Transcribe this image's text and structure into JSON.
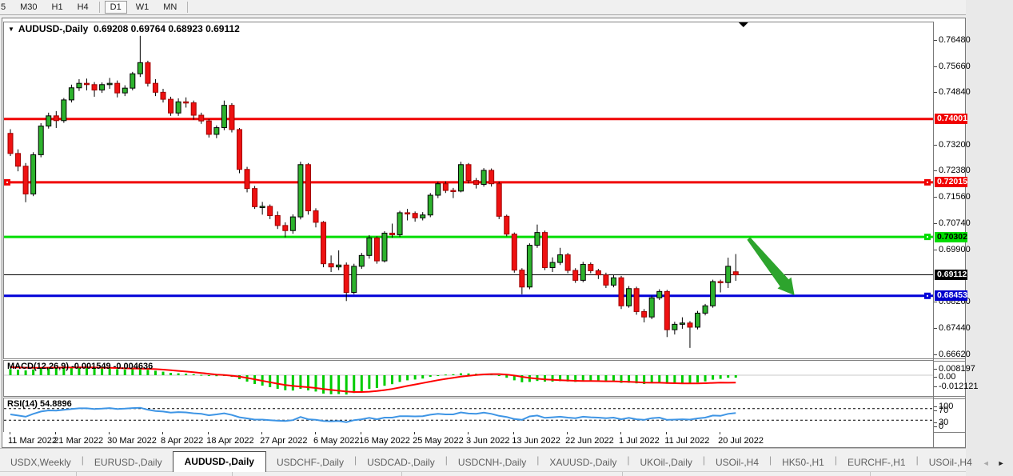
{
  "toolbar": {
    "timeframes": [
      "5",
      "M30",
      "H1",
      "H4",
      "D1",
      "W1",
      "MN"
    ],
    "active_timeframe": "D1"
  },
  "chart": {
    "symbol_period": "AUDUSD-,Daily",
    "ohlc_text": "0.69208 0.69764 0.68923 0.69112"
  },
  "colors": {
    "bull": "#2db22d",
    "bear": "#ee1111",
    "wick": "#000000",
    "macd_hist": "#00cc00",
    "macd_signal": "#ff0000",
    "rsi_line": "#3e95e5",
    "arrow_annotation": "#2da42d",
    "line_red": "#f00000",
    "line_green": "#00dd00",
    "line_black": "#000000",
    "line_blue": "#0000d8"
  },
  "chart_data": {
    "type": "candlestick",
    "title": "AUDUSD-,Daily",
    "last_ohlc": {
      "open": "0.69208",
      "high": "0.69764",
      "low": "0.68923",
      "close": "0.69112"
    },
    "price_axis_ticks": [
      "0.76480",
      "0.75660",
      "0.74840",
      "0.73200",
      "0.72380",
      "0.71560",
      "0.70740",
      "0.69900",
      "0.68260",
      "0.67440",
      "0.66620"
    ],
    "x_ticks": [
      {
        "label": "11 Mar 2022",
        "bar": 0
      },
      {
        "label": "21 Mar 2022",
        "bar": 6
      },
      {
        "label": "30 Mar 2022",
        "bar": 13
      },
      {
        "label": "8 Apr 2022",
        "bar": 20
      },
      {
        "label": "18 Apr 2022",
        "bar": 26
      },
      {
        "label": "27 Apr 2022",
        "bar": 33
      },
      {
        "label": "6 May 2022",
        "bar": 40
      },
      {
        "label": "16 May 2022",
        "bar": 46
      },
      {
        "label": "25 May 2022",
        "bar": 53
      },
      {
        "label": "3 Jun 2022",
        "bar": 60
      },
      {
        "label": "13 Jun 2022",
        "bar": 66
      },
      {
        "label": "22 Jun 2022",
        "bar": 73
      },
      {
        "label": "1 Jul 2022",
        "bar": 80
      },
      {
        "label": "11 Jul 2022",
        "bar": 86
      },
      {
        "label": "20 Jul 2022",
        "bar": 93
      }
    ],
    "hlines": [
      {
        "price": 0.74001,
        "label": "0.74001",
        "color": "#f00000",
        "width": 3,
        "badge_bg": "#f00000",
        "badge_fg": "#ffffff",
        "handles": []
      },
      {
        "price": 0.72015,
        "label": "0.72015",
        "color": "#f00000",
        "width": 3,
        "badge_bg": "#f00000",
        "badge_fg": "#ffffff",
        "handles": [
          "left",
          "right"
        ]
      },
      {
        "price": 0.70302,
        "label": "0.70302",
        "color": "#00dd00",
        "width": 3,
        "badge_bg": "#00dd00",
        "badge_fg": "#000000",
        "handles": [
          "right"
        ]
      },
      {
        "price": 0.69112,
        "label": "0.69112",
        "color": "#000000",
        "width": 1,
        "badge_bg": "#000000",
        "badge_fg": "#ffffff",
        "handles": []
      },
      {
        "price": 0.68453,
        "label": "0.68453",
        "color": "#0000d8",
        "width": 3,
        "badge_bg": "#0000cc",
        "badge_fg": "#ffffff",
        "handles": [
          "right"
        ]
      }
    ],
    "candles": [
      [
        0.7355,
        0.7368,
        0.7284,
        0.7292
      ],
      [
        0.7292,
        0.7305,
        0.7236,
        0.7252
      ],
      [
        0.7252,
        0.7262,
        0.7139,
        0.7165
      ],
      [
        0.7165,
        0.7296,
        0.7158,
        0.7288
      ],
      [
        0.7288,
        0.7387,
        0.728,
        0.7378
      ],
      [
        0.7378,
        0.742,
        0.737,
        0.741
      ],
      [
        0.741,
        0.7425,
        0.7372,
        0.7395
      ],
      [
        0.7395,
        0.7466,
        0.7388,
        0.746
      ],
      [
        0.746,
        0.7508,
        0.7452,
        0.7498
      ],
      [
        0.7498,
        0.7525,
        0.7488,
        0.7512
      ],
      [
        0.7512,
        0.7527,
        0.749,
        0.7508
      ],
      [
        0.7508,
        0.7516,
        0.747,
        0.7491
      ],
      [
        0.7491,
        0.7515,
        0.7482,
        0.7508
      ],
      [
        0.7508,
        0.7529,
        0.7495,
        0.7512
      ],
      [
        0.7512,
        0.7521,
        0.7468,
        0.7482
      ],
      [
        0.7482,
        0.7506,
        0.7472,
        0.7497
      ],
      [
        0.7497,
        0.7548,
        0.749,
        0.7542
      ],
      [
        0.7542,
        0.7661,
        0.7532,
        0.7577
      ],
      [
        0.7577,
        0.7583,
        0.7502,
        0.7512
      ],
      [
        0.7512,
        0.7525,
        0.7472,
        0.7484
      ],
      [
        0.7484,
        0.7495,
        0.7452,
        0.7462
      ],
      [
        0.7462,
        0.747,
        0.741,
        0.7419
      ],
      [
        0.7419,
        0.7465,
        0.741,
        0.7454
      ],
      [
        0.7454,
        0.7468,
        0.7436,
        0.7451
      ],
      [
        0.7451,
        0.7458,
        0.7398,
        0.7412
      ],
      [
        0.7412,
        0.742,
        0.7385,
        0.7394
      ],
      [
        0.7394,
        0.74,
        0.7342,
        0.7352
      ],
      [
        0.7352,
        0.738,
        0.734,
        0.7373
      ],
      [
        0.7373,
        0.7458,
        0.7365,
        0.7443
      ],
      [
        0.7443,
        0.745,
        0.7358,
        0.7367
      ],
      [
        0.7367,
        0.7372,
        0.723,
        0.7242
      ],
      [
        0.7242,
        0.725,
        0.717,
        0.7182
      ],
      [
        0.7182,
        0.719,
        0.7118,
        0.7125
      ],
      [
        0.7125,
        0.714,
        0.71,
        0.7126
      ],
      [
        0.7126,
        0.7132,
        0.7086,
        0.7097
      ],
      [
        0.7097,
        0.711,
        0.7055,
        0.7066
      ],
      [
        0.7066,
        0.7076,
        0.7029,
        0.705
      ],
      [
        0.705,
        0.7101,
        0.704,
        0.7093
      ],
      [
        0.7093,
        0.7266,
        0.7085,
        0.7257
      ],
      [
        0.7257,
        0.7262,
        0.71,
        0.7112
      ],
      [
        0.7112,
        0.712,
        0.706,
        0.7076
      ],
      [
        0.7076,
        0.708,
        0.6935,
        0.6946
      ],
      [
        0.6946,
        0.6972,
        0.692,
        0.6936
      ],
      [
        0.6936,
        0.6988,
        0.6926,
        0.6942
      ],
      [
        0.6942,
        0.695,
        0.6829,
        0.6856
      ],
      [
        0.6856,
        0.6946,
        0.685,
        0.6938
      ],
      [
        0.6938,
        0.698,
        0.693,
        0.6972
      ],
      [
        0.6972,
        0.7036,
        0.6962,
        0.7027
      ],
      [
        0.7027,
        0.7032,
        0.6946,
        0.6955
      ],
      [
        0.6955,
        0.7048,
        0.695,
        0.7042
      ],
      [
        0.7042,
        0.7072,
        0.7028,
        0.7037
      ],
      [
        0.7037,
        0.7112,
        0.703,
        0.7106
      ],
      [
        0.7106,
        0.7118,
        0.7082,
        0.7104
      ],
      [
        0.7104,
        0.711,
        0.7078,
        0.709
      ],
      [
        0.709,
        0.7108,
        0.7082,
        0.7099
      ],
      [
        0.7099,
        0.7168,
        0.7092,
        0.7161
      ],
      [
        0.7161,
        0.7204,
        0.7152,
        0.7197
      ],
      [
        0.7197,
        0.7205,
        0.7168,
        0.7176
      ],
      [
        0.7176,
        0.7184,
        0.7152,
        0.7174
      ],
      [
        0.7174,
        0.7266,
        0.717,
        0.7257
      ],
      [
        0.7257,
        0.7262,
        0.7198,
        0.7207
      ],
      [
        0.7207,
        0.7215,
        0.7182,
        0.7195
      ],
      [
        0.7195,
        0.7246,
        0.7188,
        0.7239
      ],
      [
        0.7239,
        0.7245,
        0.7188,
        0.7197
      ],
      [
        0.7197,
        0.7204,
        0.7086,
        0.7095
      ],
      [
        0.7095,
        0.71,
        0.7032,
        0.7039
      ],
      [
        0.7039,
        0.7044,
        0.6918,
        0.6926
      ],
      [
        0.6926,
        0.6932,
        0.685,
        0.6873
      ],
      [
        0.6873,
        0.701,
        0.6866,
        0.7004
      ],
      [
        0.7004,
        0.7069,
        0.6996,
        0.7044
      ],
      [
        0.7044,
        0.705,
        0.6926,
        0.6934
      ],
      [
        0.6934,
        0.6966,
        0.692,
        0.695
      ],
      [
        0.695,
        0.6996,
        0.6942,
        0.6974
      ],
      [
        0.6974,
        0.698,
        0.6916,
        0.6925
      ],
      [
        0.6925,
        0.6932,
        0.6886,
        0.6894
      ],
      [
        0.6894,
        0.6952,
        0.6888,
        0.6944
      ],
      [
        0.6944,
        0.695,
        0.6916,
        0.6924
      ],
      [
        0.6924,
        0.693,
        0.6898,
        0.6911
      ],
      [
        0.6911,
        0.6918,
        0.687,
        0.6879
      ],
      [
        0.6879,
        0.691,
        0.6872,
        0.6902
      ],
      [
        0.6902,
        0.6908,
        0.6804,
        0.6814
      ],
      [
        0.6814,
        0.6876,
        0.6808,
        0.6868
      ],
      [
        0.6868,
        0.6874,
        0.6786,
        0.6796
      ],
      [
        0.6796,
        0.6804,
        0.6762,
        0.6779
      ],
      [
        0.6779,
        0.6846,
        0.6772,
        0.6839
      ],
      [
        0.6839,
        0.6866,
        0.6832,
        0.6859
      ],
      [
        0.6859,
        0.6864,
        0.6716,
        0.6739
      ],
      [
        0.6739,
        0.6764,
        0.6724,
        0.6756
      ],
      [
        0.6756,
        0.6778,
        0.6742,
        0.676
      ],
      [
        0.676,
        0.6766,
        0.6682,
        0.6747
      ],
      [
        0.6747,
        0.6798,
        0.674,
        0.6791
      ],
      [
        0.6791,
        0.682,
        0.6784,
        0.6814
      ],
      [
        0.6814,
        0.6896,
        0.6808,
        0.689
      ],
      [
        0.689,
        0.6896,
        0.6856,
        0.6887
      ],
      [
        0.6887,
        0.6965,
        0.687,
        0.6938
      ],
      [
        0.69208,
        0.69764,
        0.68923,
        0.69112
      ]
    ],
    "indicators": {
      "macd": {
        "label": "MACD(12,26,9) -0.001549 -0.004636",
        "axis_ticks": [
          "0.008197",
          "0.00",
          "-0.012121"
        ],
        "histogram": [
          0.0038,
          0.0034,
          0.003,
          0.0036,
          0.0043,
          0.0047,
          0.0046,
          0.0048,
          0.005,
          0.0049,
          0.0047,
          0.0044,
          0.0043,
          0.0042,
          0.0038,
          0.0036,
          0.0038,
          0.004,
          0.0034,
          0.0028,
          0.0022,
          0.0015,
          0.0012,
          0.001,
          0.0006,
          0.0002,
          -0.0004,
          -0.0006,
          -0.0004,
          -0.001,
          -0.0025,
          -0.004,
          -0.0055,
          -0.0065,
          -0.0075,
          -0.0085,
          -0.0094,
          -0.0096,
          -0.0085,
          -0.0095,
          -0.0102,
          -0.0115,
          -0.0119,
          -0.0118,
          -0.0121,
          -0.0111,
          -0.01,
          -0.0086,
          -0.008,
          -0.0066,
          -0.0056,
          -0.0042,
          -0.0032,
          -0.0027,
          -0.0021,
          -0.001,
          0.0,
          0.0004,
          0.0006,
          0.0012,
          0.0011,
          0.0009,
          0.001,
          0.0006,
          -0.0004,
          -0.0016,
          -0.0032,
          -0.0044,
          -0.0042,
          -0.0036,
          -0.004,
          -0.004,
          -0.0037,
          -0.0039,
          -0.0042,
          -0.0038,
          -0.0038,
          -0.0039,
          -0.0041,
          -0.004,
          -0.0048,
          -0.0047,
          -0.0051,
          -0.0055,
          -0.005,
          -0.0045,
          -0.0053,
          -0.0053,
          -0.0051,
          -0.0051,
          -0.0045,
          -0.0039,
          -0.0028,
          -0.0023,
          -0.0016,
          -0.001549
        ],
        "signal": [
          0.005,
          0.0049,
          0.0047,
          0.0046,
          0.0046,
          0.0047,
          0.0047,
          0.0048,
          0.0048,
          0.0049,
          0.0049,
          0.0048,
          0.0047,
          0.0046,
          0.0045,
          0.0043,
          0.0042,
          0.0041,
          0.004,
          0.0038,
          0.0035,
          0.0031,
          0.0027,
          0.0023,
          0.0019,
          0.0014,
          0.0009,
          0.0004,
          0.0001,
          -0.0003,
          -0.0009,
          -0.0017,
          -0.0026,
          -0.0035,
          -0.0044,
          -0.0053,
          -0.0061,
          -0.0067,
          -0.0071,
          -0.0075,
          -0.008,
          -0.0086,
          -0.0092,
          -0.0097,
          -0.0102,
          -0.0105,
          -0.0105,
          -0.0103,
          -0.0099,
          -0.0093,
          -0.0086,
          -0.0077,
          -0.0067,
          -0.0058,
          -0.0049,
          -0.004,
          -0.0031,
          -0.0023,
          -0.0016,
          -0.0009,
          -0.0004,
          0.0001,
          0.0005,
          0.0007,
          0.0007,
          0.0004,
          -0.0002,
          -0.001,
          -0.0017,
          -0.0022,
          -0.0026,
          -0.0029,
          -0.0031,
          -0.0033,
          -0.0035,
          -0.0036,
          -0.0036,
          -0.0037,
          -0.0038,
          -0.0038,
          -0.004,
          -0.0041,
          -0.0043,
          -0.0046,
          -0.0047,
          -0.0047,
          -0.0049,
          -0.005,
          -0.0051,
          -0.0051,
          -0.0051,
          -0.005,
          -0.0048,
          -0.0046,
          -0.0047,
          -0.004636
        ]
      },
      "rsi": {
        "label": "RSI(14) 54.8896",
        "levels": [
          70,
          30
        ],
        "axis_ticks": [
          "100",
          "70",
          "30",
          "0"
        ],
        "values": [
          50,
          46,
          42,
          52,
          60,
          64,
          63,
          66,
          69,
          71,
          71,
          69,
          70,
          72,
          69,
          70,
          72,
          73,
          66,
          62,
          60,
          56,
          58,
          57,
          54,
          52,
          47,
          50,
          54,
          48,
          40,
          36,
          32,
          32,
          30,
          28,
          27,
          30,
          41,
          33,
          31,
          27,
          26,
          27,
          23,
          30,
          33,
          38,
          33,
          39,
          39,
          44,
          44,
          43,
          44,
          49,
          52,
          50,
          50,
          57,
          53,
          52,
          56,
          52,
          45,
          41,
          34,
          31,
          43,
          46,
          38,
          40,
          42,
          39,
          37,
          42,
          40,
          39,
          37,
          39,
          33,
          38,
          33,
          31,
          37,
          39,
          31,
          32,
          33,
          32,
          36,
          39,
          46,
          45,
          52,
          54.8896
        ]
      }
    },
    "annotations": {
      "down_arrow": {
        "from_bar": 97,
        "from_price": 0.7025,
        "to_bar": 103,
        "to_price": 0.6847
      },
      "top_marker_bar": 96
    }
  },
  "tabs": {
    "items": [
      {
        "label": "USDX,Weekly",
        "active": false
      },
      {
        "label": "EURUSD-,Daily",
        "active": false
      },
      {
        "label": "AUDUSD-,Daily",
        "active": true
      },
      {
        "label": "USDCHF-,Daily",
        "active": false
      },
      {
        "label": "USDCAD-,Daily",
        "active": false
      },
      {
        "label": "USDCNH-,Daily",
        "active": false
      },
      {
        "label": "XAUUSD-,Daily",
        "active": false
      },
      {
        "label": "UKOil-,Daily",
        "active": false
      },
      {
        "label": "USOil-,H4",
        "active": false
      },
      {
        "label": "HK50-,H1",
        "active": false
      },
      {
        "label": "EURCHF-,H1",
        "active": false
      },
      {
        "label": "USOil-,H4",
        "active": false
      }
    ],
    "scroll_left": "◄",
    "scroll_right": "►"
  }
}
